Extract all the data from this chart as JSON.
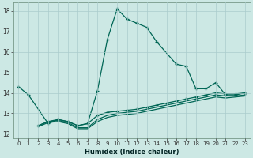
{
  "xlabel": "Humidex (Indice chaleur)",
  "bg_color": "#cce8e4",
  "grid_color": "#aacccc",
  "line_color": "#006655",
  "xlim": [
    -0.5,
    23.5
  ],
  "ylim": [
    11.8,
    18.4
  ],
  "xticks": [
    0,
    1,
    2,
    3,
    4,
    5,
    6,
    7,
    8,
    9,
    10,
    11,
    12,
    13,
    14,
    15,
    16,
    17,
    18,
    19,
    20,
    21,
    22,
    23
  ],
  "yticks": [
    12,
    13,
    14,
    15,
    16,
    17,
    18
  ],
  "line1_x": [
    0,
    1,
    3,
    4,
    5,
    6,
    7,
    8,
    9,
    10,
    11,
    12,
    13,
    14,
    16,
    17,
    18,
    19,
    20,
    21,
    22,
    23
  ],
  "line1_y": [
    14.3,
    13.9,
    12.5,
    12.7,
    12.6,
    12.4,
    12.5,
    14.1,
    16.6,
    18.1,
    17.6,
    17.4,
    17.2,
    16.5,
    15.4,
    15.3,
    14.2,
    14.2,
    14.5,
    13.9,
    13.9,
    14.0
  ],
  "line2_x": [
    2,
    3,
    4,
    5,
    6,
    7,
    8,
    9,
    10,
    11,
    12,
    13,
    14,
    15,
    16,
    17,
    18,
    19,
    20,
    21,
    22,
    23
  ],
  "line2_y": [
    12.4,
    12.6,
    12.7,
    12.6,
    12.4,
    12.5,
    12.9,
    13.05,
    13.1,
    13.15,
    13.2,
    13.3,
    13.4,
    13.5,
    13.6,
    13.7,
    13.8,
    13.9,
    14.0,
    13.95,
    13.95,
    14.0
  ],
  "line3_x": [
    2,
    3,
    4,
    5,
    6,
    7,
    8,
    9,
    10,
    11,
    12,
    13,
    14,
    15,
    16,
    17,
    18,
    19,
    20,
    21,
    22,
    23
  ],
  "line3_y": [
    12.4,
    12.6,
    12.65,
    12.55,
    12.3,
    12.3,
    12.7,
    12.9,
    13.0,
    13.05,
    13.1,
    13.2,
    13.3,
    13.4,
    13.5,
    13.6,
    13.7,
    13.8,
    13.9,
    13.85,
    13.85,
    13.9
  ],
  "line4_x": [
    2,
    3,
    4,
    5,
    6,
    7,
    8,
    9,
    10,
    11,
    12,
    13,
    14,
    15,
    16,
    17,
    18,
    19,
    20,
    21,
    22,
    23
  ],
  "line4_y": [
    12.35,
    12.55,
    12.6,
    12.5,
    12.25,
    12.25,
    12.6,
    12.8,
    12.9,
    12.95,
    13.0,
    13.1,
    13.2,
    13.3,
    13.4,
    13.5,
    13.6,
    13.7,
    13.8,
    13.75,
    13.8,
    13.85
  ]
}
